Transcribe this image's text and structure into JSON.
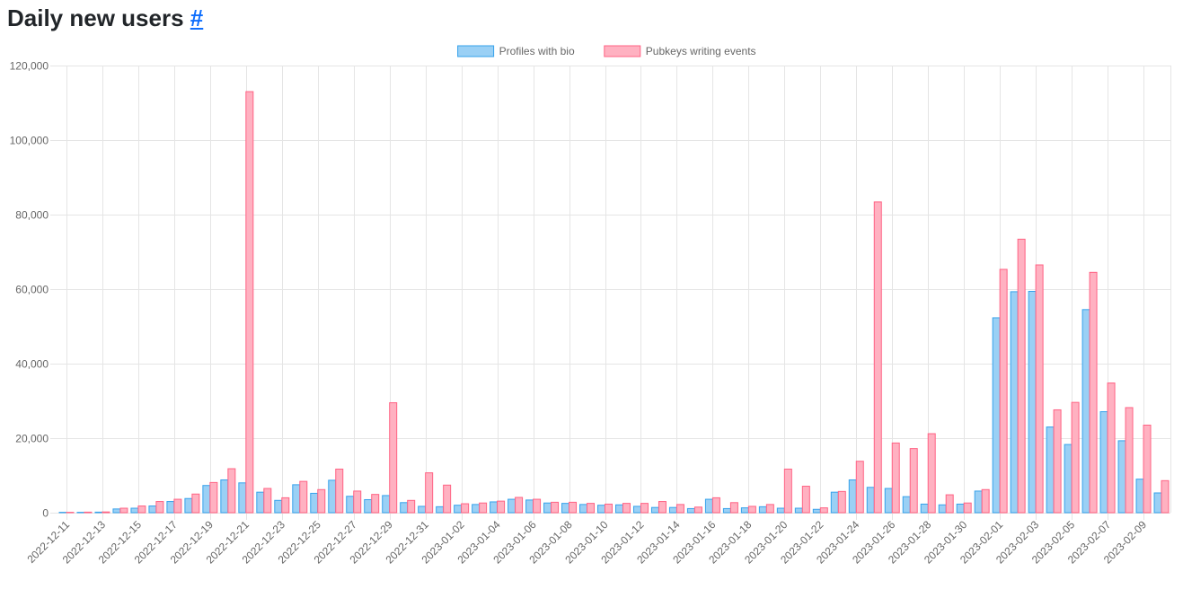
{
  "page": {
    "title": "Daily new users",
    "anchor": "#"
  },
  "colors": {
    "bio_fill": "#9ad0f5",
    "bio_stroke": "#36a2eb",
    "events_fill": "#ffb1c1",
    "events_stroke": "#ff6384",
    "grid": "#e5e5e5",
    "tick_text": "#666666"
  },
  "chart_data": {
    "type": "bar",
    "title": "",
    "xlabel": "",
    "ylabel": "",
    "ylim": [
      0,
      120000
    ],
    "yticks": [
      0,
      20000,
      40000,
      60000,
      80000,
      100000,
      120000
    ],
    "ytick_labels": [
      "0",
      "20,000",
      "40,000",
      "60,000",
      "80,000",
      "100,000",
      "120,000"
    ],
    "grid": true,
    "legend_position": "top-center",
    "categories": [
      "2022-12-11",
      "2022-12-12",
      "2022-12-13",
      "2022-12-14",
      "2022-12-15",
      "2022-12-16",
      "2022-12-17",
      "2022-12-18",
      "2022-12-19",
      "2022-12-20",
      "2022-12-21",
      "2022-12-22",
      "2022-12-23",
      "2022-12-24",
      "2022-12-25",
      "2022-12-26",
      "2022-12-27",
      "2022-12-28",
      "2022-12-29",
      "2022-12-30",
      "2022-12-31",
      "2023-01-01",
      "2023-01-02",
      "2023-01-03",
      "2023-01-04",
      "2023-01-05",
      "2023-01-06",
      "2023-01-07",
      "2023-01-08",
      "2023-01-09",
      "2023-01-10",
      "2023-01-11",
      "2023-01-12",
      "2023-01-13",
      "2023-01-14",
      "2023-01-15",
      "2023-01-16",
      "2023-01-17",
      "2023-01-18",
      "2023-01-19",
      "2023-01-20",
      "2023-01-21",
      "2023-01-22",
      "2023-01-23",
      "2023-01-24",
      "2023-01-25",
      "2023-01-26",
      "2023-01-27",
      "2023-01-28",
      "2023-01-29",
      "2023-01-30",
      "2023-01-31",
      "2023-02-01",
      "2023-02-02",
      "2023-02-03",
      "2023-02-04",
      "2023-02-05",
      "2023-02-06",
      "2023-02-07",
      "2023-02-08",
      "2023-02-09",
      "2023-02-10"
    ],
    "tick_labels": [
      "2022-12-11",
      "2022-12-13",
      "2022-12-15",
      "2022-12-17",
      "2022-12-19",
      "2022-12-21",
      "2022-12-23",
      "2022-12-25",
      "2022-12-27",
      "2022-12-29",
      "2022-12-31",
      "2023-01-02",
      "2023-01-04",
      "2023-01-06",
      "2023-01-08",
      "2023-01-10",
      "2023-01-12",
      "2023-01-14",
      "2023-01-16",
      "2023-01-18",
      "2023-01-20",
      "2023-01-22",
      "2023-01-24",
      "2023-01-26",
      "2023-01-28",
      "2023-01-30",
      "2023-02-01",
      "2023-02-03",
      "2023-02-05",
      "2023-02-07",
      "2023-02-09"
    ],
    "series": [
      {
        "name": "Profiles with bio",
        "values": [
          100,
          100,
          150,
          1000,
          1200,
          1800,
          3000,
          3800,
          7300,
          8800,
          8000,
          5500,
          3300,
          7500,
          5200,
          8700,
          4400,
          3500,
          4600,
          2700,
          1700,
          1600,
          2000,
          2200,
          2900,
          3600,
          3400,
          2600,
          2500,
          2200,
          2000,
          2100,
          1700,
          1400,
          1400,
          1100,
          3600,
          1100,
          1300,
          1600,
          1200,
          1200,
          900,
          5500,
          8800,
          6800,
          6500,
          4300,
          2300,
          2100,
          2300,
          5800,
          52300,
          59300,
          59400,
          23000,
          18300,
          54500,
          27100,
          19300,
          9000,
          5300
        ]
      },
      {
        "name": "Pubkeys writing events",
        "values": [
          100,
          150,
          200,
          1200,
          1800,
          3000,
          3600,
          5000,
          8100,
          11800,
          113000,
          6500,
          4000,
          8400,
          6200,
          11700,
          5800,
          4900,
          29500,
          3300,
          10700,
          7400,
          2400,
          2600,
          3100,
          4100,
          3600,
          2800,
          2800,
          2500,
          2300,
          2500,
          2500,
          3000,
          2200,
          1500,
          4000,
          2700,
          1700,
          2200,
          11700,
          7100,
          1300,
          5700,
          13800,
          83400,
          18700,
          17200,
          21200,
          4800,
          2600,
          6200,
          65300,
          73400,
          66500,
          27600,
          29600,
          64500,
          34800,
          28200,
          23500,
          8600
        ]
      }
    ]
  }
}
